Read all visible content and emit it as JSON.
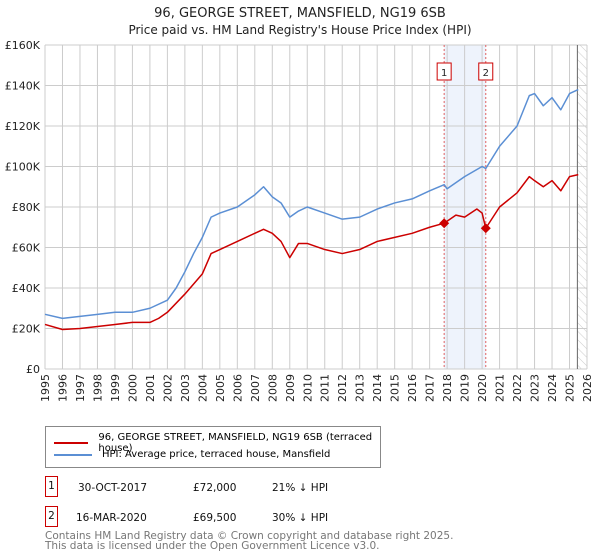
{
  "chart_data": {
    "type": "line",
    "title": "96, GEORGE STREET, MANSFIELD, NG19 6SB",
    "subtitle": "Price paid vs. HM Land Registry's House Price Index (HPI)",
    "xlim": [
      1995,
      2026
    ],
    "ylim": [
      0,
      160000
    ],
    "x_ticks": [
      "1995",
      "1996",
      "1997",
      "1998",
      "1999",
      "2000",
      "2001",
      "2002",
      "2003",
      "2004",
      "2005",
      "2006",
      "2007",
      "2008",
      "2009",
      "2010",
      "2011",
      "2012",
      "2013",
      "2014",
      "2015",
      "2016",
      "2017",
      "2018",
      "2019",
      "2020",
      "2021",
      "2022",
      "2023",
      "2024",
      "2025",
      "2026"
    ],
    "y_ticks": [
      "£0",
      "£20K",
      "£40K",
      "£60K",
      "£80K",
      "£100K",
      "£120K",
      "£140K",
      "£160K"
    ],
    "grid": true,
    "series": [
      {
        "name": "96, GEORGE STREET, MANSFIELD, NG19 6SB (terraced house)",
        "color": "#cc0000",
        "x": [
          1995,
          1996,
          1997,
          1998,
          1999,
          2000,
          2001,
          2001.5,
          2002,
          2003,
          2004,
          2004.5,
          2005,
          2006,
          2007,
          2007.5,
          2008,
          2008.5,
          2009,
          2009.5,
          2010,
          2011,
          2012,
          2013,
          2014,
          2015,
          2016,
          2017,
          2017.83,
          2018.5,
          2019,
          2019.7,
          2020.0,
          2020.21,
          2021,
          2022,
          2022.7,
          2023,
          2023.5,
          2024,
          2024.5,
          2025,
          2025.5
        ],
        "y": [
          22000,
          19500,
          20000,
          21000,
          22000,
          23000,
          23000,
          25000,
          28000,
          37000,
          47000,
          57000,
          59000,
          63000,
          67000,
          69000,
          67000,
          63000,
          55000,
          62000,
          62000,
          59000,
          57000,
          59000,
          63000,
          65000,
          67000,
          70000,
          72000,
          76000,
          75000,
          79000,
          77000,
          69500,
          80000,
          87000,
          95000,
          93000,
          90000,
          93000,
          88000,
          95000,
          96000
        ]
      },
      {
        "name": "HPI: Average price, terraced house, Mansfield",
        "color": "#5b8fd4",
        "x": [
          1995,
          1996,
          1997,
          1998,
          1999,
          2000,
          2001,
          2002,
          2002.5,
          2003,
          2003.5,
          2004,
          2004.5,
          2005,
          2006,
          2007,
          2007.5,
          2008,
          2008.5,
          2009,
          2009.5,
          2010,
          2011,
          2012,
          2013,
          2014,
          2015,
          2016,
          2017,
          2017.83,
          2018,
          2019,
          2020,
          2020.21,
          2021,
          2022,
          2022.7,
          2023,
          2023.5,
          2024,
          2024.5,
          2025,
          2025.5
        ],
        "y": [
          27000,
          25000,
          26000,
          27000,
          28000,
          28000,
          30000,
          34000,
          40000,
          48000,
          57000,
          65000,
          75000,
          77000,
          80000,
          86000,
          90000,
          85000,
          82000,
          75000,
          78000,
          80000,
          77000,
          74000,
          75000,
          79000,
          82000,
          84000,
          88000,
          91000,
          89000,
          95000,
          100000,
          99000,
          110000,
          120000,
          135000,
          136000,
          130000,
          134000,
          128000,
          136000,
          138000
        ]
      }
    ],
    "sales": [
      {
        "label": "1",
        "date": "30-OCT-2017",
        "x": 2017.83,
        "price": "£72,000",
        "value": 72000,
        "hpi": "21% ↓ HPI"
      },
      {
        "label": "2",
        "date": "16-MAR-2020",
        "x": 2020.21,
        "price": "£69,500",
        "value": 69500,
        "hpi": "30% ↓ HPI"
      }
    ],
    "legend_placement": "below",
    "footer": [
      "Contains HM Land Registry data © Crown copyright and database right 2025.",
      "This data is licensed under the Open Government Licence v3.0."
    ]
  }
}
